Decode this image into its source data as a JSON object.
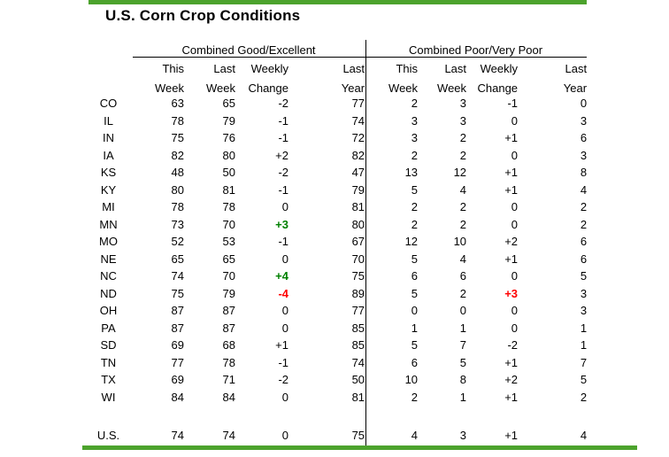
{
  "title": "U.S. Corn Crop Conditions",
  "accent_color": "#4CA32D",
  "status_colors": {
    "green": "#008000",
    "red": "#FF0000"
  },
  "header": {
    "columns": [
      {
        "line1": "This",
        "line2": "Week"
      },
      {
        "line1": "Last",
        "line2": "Week"
      },
      {
        "line1": "Weekly",
        "line2": "Change"
      },
      {
        "line1": "Last",
        "line2": "Year"
      }
    ]
  },
  "chart_data": {
    "type": "table",
    "title": "U.S. Corn Crop Conditions",
    "column_groups": [
      "Combined Good/Excellent",
      "Combined Poor/Very Poor"
    ],
    "columns_per_group": [
      "This Week",
      "Last Week",
      "Weekly Change",
      "Last Year"
    ],
    "rows": [
      {
        "state": "CO",
        "good_excellent": [
          "63",
          "65",
          "-2",
          "77"
        ],
        "poor_very_poor": [
          "2",
          "3",
          "-1",
          "0"
        ]
      },
      {
        "state": "IL",
        "good_excellent": [
          "78",
          "79",
          "-1",
          "74"
        ],
        "poor_very_poor": [
          "3",
          "3",
          "0",
          "3"
        ]
      },
      {
        "state": "IN",
        "good_excellent": [
          "75",
          "76",
          "-1",
          "72"
        ],
        "poor_very_poor": [
          "3",
          "2",
          "+1",
          "6"
        ]
      },
      {
        "state": "IA",
        "good_excellent": [
          "82",
          "80",
          "+2",
          "82"
        ],
        "poor_very_poor": [
          "2",
          "2",
          "0",
          "3"
        ]
      },
      {
        "state": "KS",
        "good_excellent": [
          "48",
          "50",
          "-2",
          "47"
        ],
        "poor_very_poor": [
          "13",
          "12",
          "+1",
          "8"
        ]
      },
      {
        "state": "KY",
        "good_excellent": [
          "80",
          "81",
          "-1",
          "79"
        ],
        "poor_very_poor": [
          "5",
          "4",
          "+1",
          "4"
        ]
      },
      {
        "state": "MI",
        "good_excellent": [
          "78",
          "78",
          "0",
          "81"
        ],
        "poor_very_poor": [
          "2",
          "2",
          "0",
          "2"
        ]
      },
      {
        "state": "MN",
        "good_excellent": [
          "73",
          "70",
          "+3",
          "80"
        ],
        "poor_very_poor": [
          "2",
          "2",
          "0",
          "2"
        ],
        "ge_change_color": "green"
      },
      {
        "state": "MO",
        "good_excellent": [
          "52",
          "53",
          "-1",
          "67"
        ],
        "poor_very_poor": [
          "12",
          "10",
          "+2",
          "6"
        ]
      },
      {
        "state": "NE",
        "good_excellent": [
          "65",
          "65",
          "0",
          "70"
        ],
        "poor_very_poor": [
          "5",
          "4",
          "+1",
          "6"
        ]
      },
      {
        "state": "NC",
        "good_excellent": [
          "74",
          "70",
          "+4",
          "75"
        ],
        "poor_very_poor": [
          "6",
          "6",
          "0",
          "5"
        ],
        "ge_change_color": "green"
      },
      {
        "state": "ND",
        "good_excellent": [
          "75",
          "79",
          "-4",
          "89"
        ],
        "poor_very_poor": [
          "5",
          "2",
          "+3",
          "3"
        ],
        "ge_change_color": "red",
        "pp_change_color": "red"
      },
      {
        "state": "OH",
        "good_excellent": [
          "87",
          "87",
          "0",
          "77"
        ],
        "poor_very_poor": [
          "0",
          "0",
          "0",
          "3"
        ]
      },
      {
        "state": "PA",
        "good_excellent": [
          "87",
          "87",
          "0",
          "85"
        ],
        "poor_very_poor": [
          "1",
          "1",
          "0",
          "1"
        ]
      },
      {
        "state": "SD",
        "good_excellent": [
          "69",
          "68",
          "+1",
          "85"
        ],
        "poor_very_poor": [
          "5",
          "7",
          "-2",
          "1"
        ]
      },
      {
        "state": "TN",
        "good_excellent": [
          "77",
          "78",
          "-1",
          "74"
        ],
        "poor_very_poor": [
          "6",
          "5",
          "+1",
          "7"
        ]
      },
      {
        "state": "TX",
        "good_excellent": [
          "69",
          "71",
          "-2",
          "50"
        ],
        "poor_very_poor": [
          "10",
          "8",
          "+2",
          "5"
        ]
      },
      {
        "state": "WI",
        "good_excellent": [
          "84",
          "84",
          "0",
          "81"
        ],
        "poor_very_poor": [
          "2",
          "1",
          "+1",
          "2"
        ]
      }
    ],
    "total_row": {
      "state": "U.S.",
      "good_excellent": [
        "74",
        "74",
        "0",
        "75"
      ],
      "poor_very_poor": [
        "4",
        "3",
        "+1",
        "4"
      ]
    }
  }
}
